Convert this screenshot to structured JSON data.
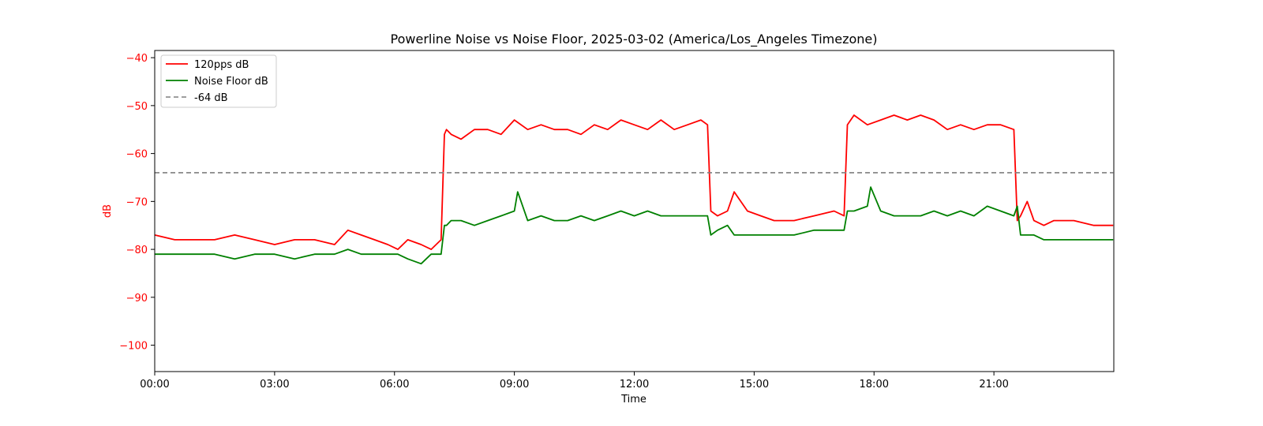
{
  "chart_data": {
    "type": "line",
    "title": "Powerline Noise vs Noise Floor, 2025-03-02 (America/Los_Angeles Timezone)",
    "xlabel": "Time",
    "ylabel": "dB",
    "xlim_hours": [
      0,
      24
    ],
    "ylim": [
      -105.5,
      -38.5
    ],
    "x_ticks": [
      {
        "hour": 0,
        "label": "00:00"
      },
      {
        "hour": 3,
        "label": "03:00"
      },
      {
        "hour": 6,
        "label": "06:00"
      },
      {
        "hour": 9,
        "label": "09:00"
      },
      {
        "hour": 12,
        "label": "12:00"
      },
      {
        "hour": 15,
        "label": "15:00"
      },
      {
        "hour": 18,
        "label": "18:00"
      },
      {
        "hour": 21,
        "label": "21:00"
      }
    ],
    "y_ticks": [
      {
        "value": -40,
        "label": "−40"
      },
      {
        "value": -50,
        "label": "−50"
      },
      {
        "value": -60,
        "label": "−60"
      },
      {
        "value": -70,
        "label": "−70"
      },
      {
        "value": -80,
        "label": "−80"
      },
      {
        "value": -90,
        "label": "−90"
      },
      {
        "value": -100,
        "label": "−100"
      }
    ],
    "axis_color": "#ff0000",
    "grid": false,
    "legend_position": "top-left",
    "series": [
      {
        "name": "120pps dB",
        "color": "#ff0000",
        "x": [
          "00:00",
          "00:30",
          "01:00",
          "01:30",
          "02:00",
          "02:30",
          "03:00",
          "03:30",
          "04:00",
          "04:30",
          "04:50",
          "05:10",
          "05:30",
          "05:50",
          "06:05",
          "06:20",
          "06:40",
          "06:55",
          "07:10",
          "07:15",
          "07:18",
          "07:25",
          "07:40",
          "08:00",
          "08:20",
          "08:40",
          "09:00",
          "09:20",
          "09:40",
          "10:00",
          "10:20",
          "10:40",
          "11:00",
          "11:20",
          "11:40",
          "12:00",
          "12:20",
          "12:40",
          "13:00",
          "13:20",
          "13:40",
          "13:50",
          "13:55",
          "14:05",
          "14:20",
          "14:30",
          "14:40",
          "14:50",
          "15:10",
          "15:30",
          "16:00",
          "16:30",
          "17:00",
          "17:15",
          "17:20",
          "17:30",
          "17:50",
          "18:10",
          "18:30",
          "18:50",
          "19:10",
          "19:30",
          "19:50",
          "20:10",
          "20:30",
          "20:50",
          "21:10",
          "21:30",
          "21:35",
          "21:40",
          "21:50",
          "22:00",
          "22:15",
          "22:30",
          "23:00",
          "23:30",
          "23:59"
        ],
        "y": [
          -77,
          -78,
          -78,
          -78,
          -77,
          -78,
          -79,
          -78,
          -78,
          -79,
          -76,
          -77,
          -78,
          -79,
          -80,
          -78,
          -79,
          -80,
          -78,
          -56,
          -55,
          -56,
          -57,
          -55,
          -55,
          -56,
          -53,
          -55,
          -54,
          -55,
          -55,
          -56,
          -54,
          -55,
          -53,
          -54,
          -55,
          -53,
          -55,
          -54,
          -53,
          -54,
          -72,
          -73,
          -72,
          -68,
          -70,
          -72,
          -73,
          -74,
          -74,
          -73,
          -72,
          -73,
          -54,
          -52,
          -54,
          -53,
          -52,
          -53,
          -52,
          -53,
          -55,
          -54,
          -55,
          -54,
          -54,
          -55,
          -74,
          -73,
          -70,
          -74,
          -75,
          -74,
          -74,
          -75,
          -75
        ]
      },
      {
        "name": "Noise Floor dB",
        "color": "#008000",
        "x": [
          "00:00",
          "00:30",
          "01:00",
          "01:30",
          "02:00",
          "02:30",
          "03:00",
          "03:30",
          "04:00",
          "04:30",
          "04:50",
          "05:10",
          "05:30",
          "05:50",
          "06:05",
          "06:20",
          "06:40",
          "06:55",
          "07:10",
          "07:15",
          "07:18",
          "07:25",
          "07:40",
          "08:00",
          "08:20",
          "08:40",
          "09:00",
          "09:05",
          "09:10",
          "09:20",
          "09:40",
          "10:00",
          "10:20",
          "10:40",
          "11:00",
          "11:20",
          "11:40",
          "12:00",
          "12:20",
          "12:40",
          "13:00",
          "13:20",
          "13:40",
          "13:50",
          "13:55",
          "14:05",
          "14:20",
          "14:30",
          "14:40",
          "14:50",
          "15:10",
          "15:30",
          "16:00",
          "16:30",
          "17:00",
          "17:15",
          "17:20",
          "17:30",
          "17:50",
          "17:55",
          "18:10",
          "18:30",
          "18:50",
          "19:10",
          "19:30",
          "19:50",
          "20:10",
          "20:30",
          "20:50",
          "21:10",
          "21:30",
          "21:35",
          "21:40",
          "21:50",
          "22:00",
          "22:15",
          "22:30",
          "23:00",
          "23:30",
          "23:59"
        ],
        "y": [
          -81,
          -81,
          -81,
          -81,
          -82,
          -81,
          -81,
          -82,
          -81,
          -81,
          -80,
          -81,
          -81,
          -81,
          -81,
          -82,
          -83,
          -81,
          -81,
          -75,
          -75,
          -74,
          -74,
          -75,
          -74,
          -73,
          -72,
          -68,
          -70,
          -74,
          -73,
          -74,
          -74,
          -73,
          -74,
          -73,
          -72,
          -73,
          -72,
          -73,
          -73,
          -73,
          -73,
          -73,
          -77,
          -76,
          -75,
          -77,
          -77,
          -77,
          -77,
          -77,
          -77,
          -76,
          -76,
          -76,
          -72,
          -72,
          -71,
          -67,
          -72,
          -73,
          -73,
          -73,
          -72,
          -73,
          -72,
          -73,
          -71,
          -72,
          -73,
          -71,
          -77,
          -77,
          -77,
          -78,
          -78,
          -78,
          -78,
          -78
        ]
      },
      {
        "name": "-64 dB",
        "color": "#7f7f7f",
        "dashed": true,
        "x": [
          "00:00",
          "23:59"
        ],
        "y": [
          -64,
          -64
        ]
      }
    ]
  }
}
